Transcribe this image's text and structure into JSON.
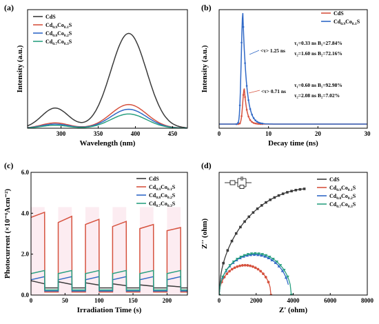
{
  "chart_data": [
    {
      "panel": "(a)",
      "type": "line",
      "xlabel": "Wavelength (nm)",
      "ylabel": "Intensity (a.u.)",
      "xlim": [
        255,
        470
      ],
      "ylim": [
        0,
        1.0
      ],
      "xticks": [
        300,
        350,
        400,
        450
      ],
      "legend_position": "top-left",
      "series": [
        {
          "name": "CdS",
          "label_main": "CdS",
          "label_parts": [],
          "color": "#3a3a3a",
          "peaks": [
            [
              292,
              0.17,
              18
            ],
            [
              391,
              0.8,
              24
            ]
          ]
        },
        {
          "name": "Cd0.9Co0.1S",
          "label_main": "Cd",
          "label_parts": [
            [
              "0.9",
              "Co"
            ],
            [
              "0.1",
              "S"
            ]
          ],
          "color": "#d6523e",
          "peaks": [
            [
              292,
              0.045,
              18
            ],
            [
              391,
              0.2,
              24
            ]
          ]
        },
        {
          "name": "Cd0.8Co0.2S",
          "label_main": "Cd",
          "label_parts": [
            [
              "0.8",
              "Co"
            ],
            [
              "0.2",
              "S"
            ]
          ],
          "color": "#2f68c6",
          "peaks": [
            [
              292,
              0.035,
              18
            ],
            [
              391,
              0.16,
              24
            ]
          ]
        },
        {
          "name": "Cd0.7Co0.3S",
          "label_main": "Cd",
          "label_parts": [
            [
              "0.7",
              "Co"
            ],
            [
              "0.3",
              "S"
            ]
          ],
          "color": "#2aa080",
          "peaks": [
            [
              292,
              0.025,
              18
            ],
            [
              391,
              0.12,
              24
            ]
          ]
        }
      ]
    },
    {
      "panel": "(b)",
      "type": "line",
      "xlabel": "Decay time (ns)",
      "ylabel": "Intensity (a.u.)",
      "xlim": [
        0,
        30
      ],
      "ylim": [
        0,
        1.0
      ],
      "xticks": [
        0,
        10,
        20,
        30
      ],
      "legend_position": "top-right",
      "series": [
        {
          "name": "CdS",
          "label_main": "CdS",
          "label_parts": [],
          "color": "#d6523e",
          "peak_time": 5.1,
          "peak_height": 0.32,
          "avg_lifetime": "<τ> 0.71 ns"
        },
        {
          "name": "Cd0.9Co0.1S",
          "label_main": "Cd",
          "label_parts": [
            [
              "0.9",
              "Co"
            ],
            [
              "0.1",
              "S"
            ]
          ],
          "color": "#2f68c6",
          "peak_time": 4.8,
          "peak_height": 1.0,
          "avg_lifetime": "<τ> 1.25 ns"
        }
      ],
      "annotations": {
        "blue_line1": "τ₁=0.33 ns  B₁=27.84%",
        "blue_line2": "τ₂=1.60 ns  B₂=72.16%",
        "red_line1": "τ₁=0.60 ns  B₁=92.98%",
        "red_line2": "τ₂=2.08 ns  B₂=7.02%"
      }
    },
    {
      "panel": "(c)",
      "type": "line",
      "xlabel": "Irradiation Time (s)",
      "ylabel": "Photocurrent (×10⁻⁶Acm⁻²)",
      "xlim": [
        0,
        230
      ],
      "ylim": [
        0,
        6.0
      ],
      "xticks": [
        0,
        50,
        100,
        150,
        200
      ],
      "yticks": [
        0.0,
        2.0,
        4.0,
        6.0
      ],
      "ytick_labels": [
        "0.0",
        "2.0",
        "4.0",
        "6.0"
      ],
      "legend_position": "top-right",
      "on_intervals": [
        [
          0,
          20
        ],
        [
          40,
          60
        ],
        [
          80,
          100
        ],
        [
          120,
          140
        ],
        [
          160,
          180
        ],
        [
          200,
          220
        ]
      ],
      "series": [
        {
          "name": "CdS",
          "label_main": "CdS",
          "label_parts": [],
          "color": "#3a3a3a",
          "on_start": 0.7,
          "on_end": 0.55,
          "off_level": 0.35,
          "decay_to": 0.32
        },
        {
          "name": "Cd0.9Co0.1S",
          "label_main": "Cd",
          "label_parts": [
            [
              "0.9",
              "Co"
            ],
            [
              "0.1",
              "S"
            ]
          ],
          "color": "#d6523e",
          "on_start": [
            3.8,
            3.55,
            3.45,
            3.35,
            3.25,
            3.15
          ],
          "on_end": [
            4.05,
            3.85,
            3.7,
            3.6,
            3.45,
            3.3
          ],
          "off_level": 0.15
        },
        {
          "name": "Cd0.8Co0.2S",
          "label_main": "Cd",
          "label_parts": [
            [
              "0.8",
              "Co"
            ],
            [
              "0.2",
              "S"
            ]
          ],
          "color": "#2f68c6",
          "on_start": [
            0.75,
            0.75,
            0.75,
            0.75,
            0.75,
            0.75
          ],
          "on_end": [
            0.9,
            0.9,
            0.9,
            0.9,
            0.9,
            0.9
          ],
          "off_level": 0.2
        },
        {
          "name": "Cd0.7Co0.3S",
          "label_main": "Cd",
          "label_parts": [
            [
              "0.7",
              "Co"
            ],
            [
              "0.3",
              "S"
            ]
          ],
          "color": "#2aa080",
          "on_start": [
            1.05,
            1.05,
            1.05,
            1.05,
            1.05,
            1.05
          ],
          "on_end": [
            1.2,
            1.2,
            1.2,
            1.2,
            1.2,
            1.2
          ],
          "off_level": 0.25
        }
      ]
    },
    {
      "panel": "(d)",
      "type": "scatter",
      "xlabel": "Z' (ohm)",
      "ylabel": "Z'' (ohm)",
      "xlim": [
        0,
        8000
      ],
      "ylim": [
        0,
        8000
      ],
      "xticks": [
        0,
        2000,
        4000,
        6000,
        8000
      ],
      "legend_position": "top-right",
      "inset": "equivalent circuit",
      "series": [
        {
          "name": "CdS",
          "label_main": "CdS",
          "label_parts": [],
          "color": "#3a3a3a",
          "marker": "square",
          "diameter": 10000,
          "x_max": 4600
        },
        {
          "name": "Cd0.9Co0.1S",
          "label_main": "Cd",
          "label_parts": [
            [
              "0.9",
              "Co"
            ],
            [
              "0.1",
              "S"
            ]
          ],
          "color": "#d6523e",
          "marker": "circle",
          "diameter": 2800,
          "x_max": 2800
        },
        {
          "name": "Cd0.8Co0.2S",
          "label_main": "Cd",
          "label_parts": [
            [
              "0.8",
              "Co"
            ],
            [
              "0.2",
              "S"
            ]
          ],
          "color": "#2f68c6",
          "marker": "triangle",
          "diameter": 3800,
          "x_max": 3800
        },
        {
          "name": "Cd0.7Co0.3S",
          "label_main": "Cd",
          "label_parts": [
            [
              "0.7",
              "Co"
            ],
            [
              "0.3",
              "S"
            ]
          ],
          "color": "#2aa080",
          "marker": "triangle-down",
          "diameter": 3900,
          "x_max": 3900
        }
      ]
    }
  ]
}
